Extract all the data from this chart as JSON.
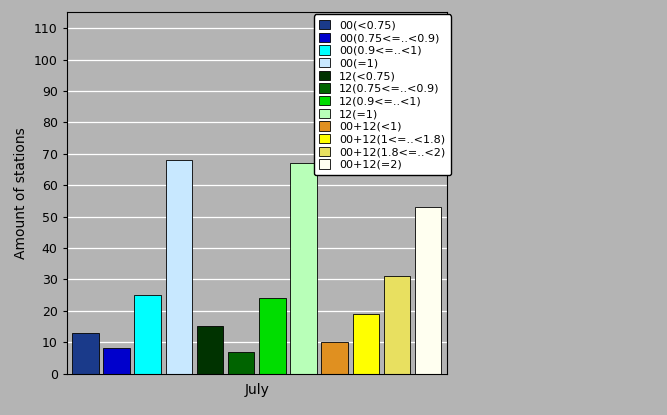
{
  "bars": [
    {
      "label": "00(<0.75)",
      "value": 13,
      "color": "#1a3a8a"
    },
    {
      "label": "00(0.75<=..<0.9)",
      "value": 8,
      "color": "#0000cc"
    },
    {
      "label": "00(0.9<=..<1)",
      "value": 25,
      "color": "#00ffff"
    },
    {
      "label": "00(=1)",
      "value": 68,
      "color": "#c8e8ff"
    },
    {
      "label": "12(<0.75)",
      "value": 15,
      "color": "#003300"
    },
    {
      "label": "12(0.75<=..<0.9)",
      "value": 7,
      "color": "#006400"
    },
    {
      "label": "12(0.9<=..<1)",
      "value": 24,
      "color": "#00dd00"
    },
    {
      "label": "12(=1)",
      "value": 67,
      "color": "#b8ffb8"
    },
    {
      "label": "00+12(<1)",
      "value": 10,
      "color": "#e09020"
    },
    {
      "label": "00+12(1<=..<1.8)",
      "value": 19,
      "color": "#ffff00"
    },
    {
      "label": "00+12(1.8<=..<2)",
      "value": 31,
      "color": "#e8e060"
    },
    {
      "label": "00+12(=2)",
      "value": 53,
      "color": "#fffff0"
    }
  ],
  "ylabel": "Amount of stations",
  "xlabel": "July",
  "ylim": [
    0,
    115
  ],
  "yticks": [
    0,
    10,
    20,
    30,
    40,
    50,
    60,
    70,
    80,
    90,
    100,
    110
  ],
  "plot_bg_color": "#b4b4b4",
  "fig_bg_color": "#b4b4b4",
  "legend_fontsize": 8,
  "bar_width": 0.85,
  "figsize": [
    6.67,
    4.15
  ],
  "dpi": 100
}
